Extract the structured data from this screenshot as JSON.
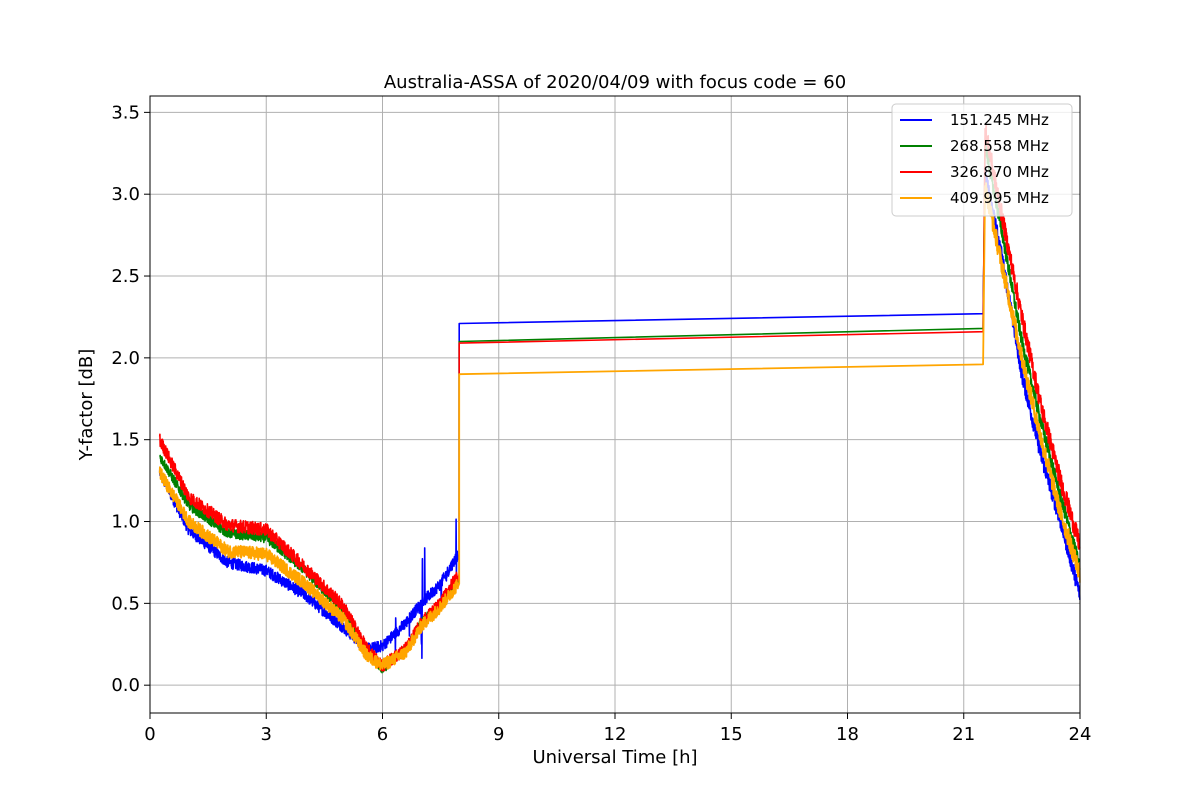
{
  "chart_data": {
    "type": "line",
    "title": "Australia-ASSA of 2020/04/09 with focus code = 60",
    "xlabel": "Universal Time [h]",
    "ylabel": "Y-factor [dB]",
    "xlim": [
      0,
      24
    ],
    "ylim": [
      -0.17,
      3.6
    ],
    "xticks": [
      0,
      3,
      6,
      9,
      12,
      15,
      18,
      21,
      24
    ],
    "yticks": [
      0.0,
      0.5,
      1.0,
      1.5,
      2.0,
      2.5,
      3.0,
      3.5
    ],
    "xtick_labels": [
      "0",
      "3",
      "6",
      "9",
      "12",
      "15",
      "18",
      "21",
      "24"
    ],
    "ytick_labels": [
      "0.0",
      "0.5",
      "1.0",
      "1.5",
      "2.0",
      "2.5",
      "3.0",
      "3.5"
    ],
    "grid": true,
    "legend_position": "top-right",
    "series": [
      {
        "name": "151.245 MHz",
        "color": "#0000ff",
        "noise": 0.035,
        "x": [
          0.25,
          1,
          2,
          3,
          4,
          5,
          5.6,
          6,
          6.6,
          7,
          7.5,
          7.95,
          7.98,
          21.5,
          21.55,
          22,
          22.5,
          23,
          23.5,
          24
        ],
        "y": [
          1.3,
          0.95,
          0.75,
          0.7,
          0.55,
          0.35,
          0.22,
          0.24,
          0.38,
          0.5,
          0.62,
          0.8,
          2.21,
          2.27,
          3.12,
          2.6,
          1.9,
          1.4,
          1.0,
          0.55
        ]
      },
      {
        "name": "268.558 MHz",
        "color": "#008000",
        "noise": 0.03,
        "x": [
          0.25,
          1,
          2,
          3,
          4,
          5,
          5.6,
          6,
          6.6,
          7,
          7.5,
          7.95,
          7.98,
          21.5,
          21.55,
          22,
          22.5,
          23,
          23.5,
          24
        ],
        "y": [
          1.4,
          1.1,
          0.93,
          0.9,
          0.7,
          0.45,
          0.2,
          0.1,
          0.22,
          0.38,
          0.5,
          0.65,
          2.1,
          2.18,
          3.3,
          2.75,
          2.1,
          1.6,
          1.15,
          0.72
        ]
      },
      {
        "name": "326.870 MHz",
        "color": "#ff0000",
        "noise": 0.04,
        "x": [
          0.25,
          1,
          2,
          3,
          4,
          5,
          5.6,
          6,
          6.6,
          7,
          7.5,
          7.95,
          7.98,
          21.5,
          21.55,
          22,
          22.5,
          23,
          23.5,
          24
        ],
        "y": [
          1.5,
          1.15,
          0.98,
          0.95,
          0.72,
          0.48,
          0.22,
          0.12,
          0.22,
          0.38,
          0.5,
          0.68,
          2.09,
          2.16,
          3.4,
          2.85,
          2.25,
          1.7,
          1.25,
          0.85
        ]
      },
      {
        "name": "409.995 MHz",
        "color": "#ffa500",
        "noise": 0.04,
        "x": [
          0.25,
          1,
          2,
          3,
          4,
          5,
          5.6,
          6,
          6.6,
          7,
          7.5,
          7.95,
          7.98,
          21.5,
          21.55,
          22,
          22.5,
          23,
          23.5,
          24
        ],
        "y": [
          1.3,
          1.0,
          0.82,
          0.8,
          0.62,
          0.4,
          0.18,
          0.12,
          0.2,
          0.36,
          0.48,
          0.62,
          1.9,
          1.96,
          3.05,
          2.55,
          2.0,
          1.5,
          1.05,
          0.68
        ]
      }
    ]
  }
}
